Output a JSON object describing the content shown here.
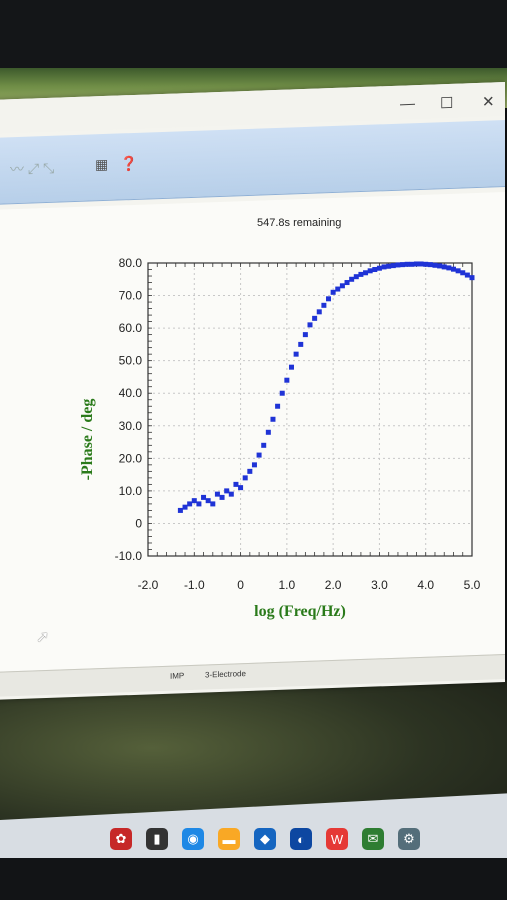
{
  "window": {
    "controls": {
      "minimize": "—",
      "maximize": "☐",
      "close": "✕"
    },
    "toolbar": {
      "help": "❓",
      "grid": "▦"
    }
  },
  "remaining_label": "547.8s remaining",
  "status": {
    "mode": "IMP",
    "electrode": "3-Electrode"
  },
  "colors": {
    "points": "#1f33d6",
    "axis_title": "#2a7a1a",
    "toolbar": "#b7cfe9"
  },
  "chart_data": {
    "type": "scatter",
    "xlabel": "log (Freq/Hz)",
    "ylabel": "-Phase / deg",
    "xlim": [
      -2.0,
      5.0
    ],
    "ylim": [
      -10.0,
      80.0
    ],
    "x_ticks": [
      "-2.0",
      "-1.0",
      "0",
      "1.0",
      "2.0",
      "3.0",
      "4.0",
      "5.0"
    ],
    "y_ticks": [
      "-10.0",
      "0",
      "10.0",
      "20.0",
      "30.0",
      "40.0",
      "50.0",
      "60.0",
      "70.0",
      "80.0"
    ],
    "grid": true,
    "series": [
      {
        "x": [
          -1.3,
          -1.2,
          -1.1,
          -1.0,
          -0.9,
          -0.8,
          -0.7,
          -0.6,
          -0.5,
          -0.4,
          -0.3,
          -0.2,
          -0.1,
          0.0,
          0.1,
          0.2,
          0.3,
          0.4,
          0.5,
          0.6,
          0.7,
          0.8,
          0.9,
          1.0,
          1.1,
          1.2,
          1.3,
          1.4,
          1.5,
          1.6,
          1.7,
          1.8,
          1.9,
          2.0,
          2.1,
          2.2,
          2.3,
          2.4,
          2.5,
          2.6,
          2.7,
          2.8,
          2.9,
          3.0,
          3.1,
          3.2,
          3.3,
          3.4,
          3.5,
          3.6,
          3.7,
          3.8,
          3.9,
          4.0,
          4.1,
          4.2,
          4.3,
          4.4,
          4.5,
          4.6,
          4.7,
          4.8,
          4.9,
          5.0
        ],
        "y": [
          4,
          5,
          6,
          7,
          6,
          8,
          7,
          6,
          9,
          8,
          10,
          9,
          12,
          11,
          14,
          16,
          18,
          21,
          24,
          28,
          32,
          36,
          40,
          44,
          48,
          52,
          55,
          58,
          61,
          63,
          65,
          67,
          69,
          71,
          72,
          73,
          74,
          75,
          75.8,
          76.5,
          77,
          77.6,
          78,
          78.4,
          78.8,
          79,
          79.2,
          79.4,
          79.5,
          79.6,
          79.6,
          79.7,
          79.7,
          79.6,
          79.5,
          79.3,
          79.1,
          78.8,
          78.5,
          78.1,
          77.6,
          77,
          76.3,
          75.5
        ]
      }
    ]
  }
}
